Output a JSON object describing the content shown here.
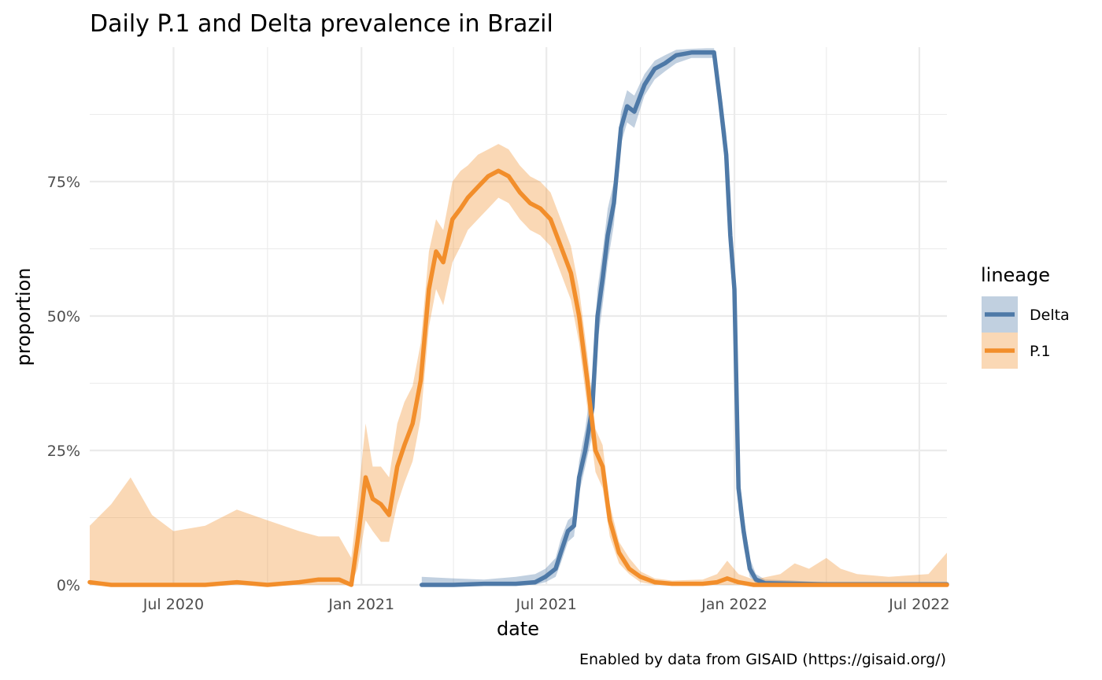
{
  "chart_data": {
    "type": "area",
    "title": "Daily P.1 and Delta prevalence in Brazil",
    "xlabel": "date",
    "ylabel": "proportion",
    "caption": "Enabled by data from GISAID (https://gisaid.org/)",
    "xlim": [
      "2020-04-10",
      "2022-07-28"
    ],
    "ylim": [
      0,
      1
    ],
    "x_ticks": [
      {
        "date": "2020-07-01",
        "label": "Jul 2020"
      },
      {
        "date": "2021-01-01",
        "label": "Jan 2021"
      },
      {
        "date": "2021-07-01",
        "label": "Jul 2021"
      },
      {
        "date": "2022-01-01",
        "label": "Jan 2022"
      },
      {
        "date": "2022-07-01",
        "label": "Jul 2022"
      }
    ],
    "x_minor_ticks": [
      "2020-04-01",
      "2020-10-01",
      "2021-04-01",
      "2021-10-01",
      "2022-04-01"
    ],
    "y_ticks": [
      {
        "value": 0,
        "label": "0%"
      },
      {
        "value": 0.25,
        "label": "25%"
      },
      {
        "value": 0.5,
        "label": "50%"
      },
      {
        "value": 0.75,
        "label": "75%"
      }
    ],
    "y_minor_ticks": [
      0.125,
      0.375,
      0.625,
      0.875
    ],
    "grid": true,
    "legend": {
      "title": "lineage",
      "position": "right"
    },
    "series": [
      {
        "name": "Delta",
        "color": "#4e79a7",
        "band_color": "#4e79a7",
        "points": [
          [
            "2021-03-01",
            0,
            0,
            0.015
          ],
          [
            "2021-04-01",
            0,
            0,
            0.012
          ],
          [
            "2021-05-01",
            0.002,
            0,
            0.01
          ],
          [
            "2021-06-01",
            0.002,
            0,
            0.015
          ],
          [
            "2021-06-20",
            0.005,
            0,
            0.02
          ],
          [
            "2021-06-30",
            0.015,
            0.005,
            0.03
          ],
          [
            "2021-07-10",
            0.03,
            0.015,
            0.05
          ],
          [
            "2021-07-15",
            0.06,
            0.04,
            0.085
          ],
          [
            "2021-07-22",
            0.1,
            0.08,
            0.12
          ],
          [
            "2021-07-28",
            0.11,
            0.09,
            0.13
          ],
          [
            "2021-08-02",
            0.2,
            0.17,
            0.23
          ],
          [
            "2021-08-08",
            0.25,
            0.22,
            0.29
          ],
          [
            "2021-08-15",
            0.33,
            0.28,
            0.39
          ],
          [
            "2021-08-20",
            0.5,
            0.45,
            0.55
          ],
          [
            "2021-08-25",
            0.57,
            0.52,
            0.62
          ],
          [
            "2021-08-30",
            0.65,
            0.6,
            0.7
          ],
          [
            "2021-09-05",
            0.71,
            0.67,
            0.75
          ],
          [
            "2021-09-12",
            0.85,
            0.82,
            0.88
          ],
          [
            "2021-09-18",
            0.89,
            0.86,
            0.92
          ],
          [
            "2021-09-25",
            0.88,
            0.85,
            0.91
          ],
          [
            "2021-10-05",
            0.93,
            0.91,
            0.95
          ],
          [
            "2021-10-15",
            0.96,
            0.94,
            0.975
          ],
          [
            "2021-10-25",
            0.97,
            0.955,
            0.985
          ],
          [
            "2021-11-05",
            0.985,
            0.97,
            0.995
          ],
          [
            "2021-11-20",
            0.99,
            0.98,
            0.997
          ],
          [
            "2021-12-05",
            0.99,
            0.98,
            0.998
          ],
          [
            "2021-12-12",
            0.99,
            0.98,
            0.998
          ],
          [
            "2021-12-18",
            0.9,
            0.87,
            0.93
          ],
          [
            "2021-12-24",
            0.8,
            0.76,
            0.84
          ],
          [
            "2021-12-28",
            0.65,
            0.6,
            0.7
          ],
          [
            "2022-01-01",
            0.55,
            0.5,
            0.6
          ],
          [
            "2022-01-05",
            0.18,
            0.14,
            0.22
          ],
          [
            "2022-01-10",
            0.1,
            0.07,
            0.13
          ],
          [
            "2022-01-16",
            0.03,
            0.015,
            0.05
          ],
          [
            "2022-01-22",
            0.01,
            0.003,
            0.02
          ],
          [
            "2022-01-31",
            0.003,
            0,
            0.01
          ],
          [
            "2022-02-28",
            0.002,
            0,
            0.008
          ],
          [
            "2022-04-01",
            0.001,
            0,
            0.004
          ],
          [
            "2022-05-01",
            0.001,
            0,
            0.004
          ],
          [
            "2022-06-01",
            0.001,
            0,
            0.003
          ],
          [
            "2022-07-28",
            0.001,
            0,
            0.003
          ]
        ]
      },
      {
        "name": "P.1",
        "color": "#f28e2b",
        "band_color": "#f28e2b",
        "points": [
          [
            "2020-04-10",
            0.005,
            0,
            0.11
          ],
          [
            "2020-05-01",
            0,
            0,
            0.15
          ],
          [
            "2020-05-20",
            0,
            0,
            0.2
          ],
          [
            "2020-06-10",
            0,
            0,
            0.13
          ],
          [
            "2020-07-01",
            0,
            0,
            0.1
          ],
          [
            "2020-08-01",
            0,
            0,
            0.11
          ],
          [
            "2020-09-01",
            0.005,
            0,
            0.14
          ],
          [
            "2020-10-01",
            0,
            0,
            0.12
          ],
          [
            "2020-11-01",
            0.005,
            0,
            0.1
          ],
          [
            "2020-11-20",
            0.01,
            0,
            0.09
          ],
          [
            "2020-12-10",
            0.01,
            0,
            0.09
          ],
          [
            "2020-12-22",
            0,
            0,
            0.05
          ],
          [
            "2020-12-28",
            0.08,
            0.03,
            0.15
          ],
          [
            "2021-01-05",
            0.2,
            0.12,
            0.3
          ],
          [
            "2021-01-12",
            0.16,
            0.1,
            0.22
          ],
          [
            "2021-01-20",
            0.15,
            0.08,
            0.22
          ],
          [
            "2021-01-28",
            0.13,
            0.08,
            0.2
          ],
          [
            "2021-02-05",
            0.22,
            0.15,
            0.3
          ],
          [
            "2021-02-12",
            0.26,
            0.19,
            0.34
          ],
          [
            "2021-02-20",
            0.3,
            0.23,
            0.37
          ],
          [
            "2021-02-28",
            0.38,
            0.31,
            0.45
          ],
          [
            "2021-03-08",
            0.55,
            0.48,
            0.62
          ],
          [
            "2021-03-15",
            0.62,
            0.55,
            0.68
          ],
          [
            "2021-03-22",
            0.6,
            0.52,
            0.66
          ],
          [
            "2021-03-31",
            0.68,
            0.6,
            0.75
          ],
          [
            "2021-04-08",
            0.7,
            0.63,
            0.77
          ],
          [
            "2021-04-15",
            0.72,
            0.66,
            0.78
          ],
          [
            "2021-04-25",
            0.74,
            0.68,
            0.8
          ],
          [
            "2021-05-05",
            0.76,
            0.7,
            0.81
          ],
          [
            "2021-05-15",
            0.77,
            0.72,
            0.82
          ],
          [
            "2021-05-25",
            0.76,
            0.71,
            0.81
          ],
          [
            "2021-06-05",
            0.73,
            0.68,
            0.78
          ],
          [
            "2021-06-15",
            0.71,
            0.66,
            0.76
          ],
          [
            "2021-06-25",
            0.7,
            0.65,
            0.75
          ],
          [
            "2021-07-05",
            0.68,
            0.63,
            0.73
          ],
          [
            "2021-07-15",
            0.63,
            0.58,
            0.68
          ],
          [
            "2021-07-25",
            0.58,
            0.53,
            0.63
          ],
          [
            "2021-08-02",
            0.5,
            0.45,
            0.55
          ],
          [
            "2021-08-10",
            0.38,
            0.33,
            0.43
          ],
          [
            "2021-08-18",
            0.25,
            0.21,
            0.29
          ],
          [
            "2021-08-25",
            0.22,
            0.18,
            0.26
          ],
          [
            "2021-09-01",
            0.12,
            0.09,
            0.15
          ],
          [
            "2021-09-10",
            0.06,
            0.04,
            0.08
          ],
          [
            "2021-09-20",
            0.03,
            0.02,
            0.05
          ],
          [
            "2021-10-01",
            0.015,
            0.005,
            0.025
          ],
          [
            "2021-10-15",
            0.005,
            0,
            0.012
          ],
          [
            "2021-11-01",
            0.002,
            0,
            0.008
          ],
          [
            "2021-12-01",
            0.002,
            0,
            0.01
          ],
          [
            "2021-12-15",
            0.005,
            0,
            0.02
          ],
          [
            "2021-12-25",
            0.012,
            0,
            0.045
          ],
          [
            "2022-01-05",
            0.005,
            0,
            0.02
          ],
          [
            "2022-01-20",
            0,
            0,
            0.01
          ],
          [
            "2022-02-15",
            0,
            0,
            0.02
          ],
          [
            "2022-03-01",
            0,
            0,
            0.04
          ],
          [
            "2022-03-15",
            0,
            0,
            0.03
          ],
          [
            "2022-04-01",
            0,
            0,
            0.05
          ],
          [
            "2022-04-15",
            0,
            0,
            0.03
          ],
          [
            "2022-05-01",
            0,
            0,
            0.02
          ],
          [
            "2022-06-01",
            0,
            0,
            0.015
          ],
          [
            "2022-07-10",
            0,
            0,
            0.02
          ],
          [
            "2022-07-28",
            0,
            0,
            0.06
          ]
        ]
      }
    ]
  }
}
